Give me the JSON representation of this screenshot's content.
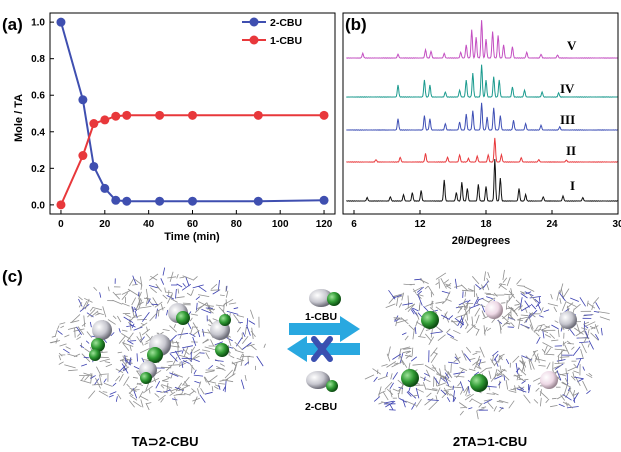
{
  "panels": {
    "a": "(a)",
    "b": "(b)",
    "c": "(c)"
  },
  "chart_data": [
    {
      "type": "line",
      "xlabel": "Time (min)",
      "ylabel": "Mole / TA",
      "xlim": [
        -5,
        125
      ],
      "ylim": [
        -0.05,
        1.05
      ],
      "xticks": [
        0,
        20,
        40,
        60,
        80,
        100,
        120
      ],
      "yticks": [
        0.0,
        0.2,
        0.4,
        0.6,
        0.8,
        1.0
      ],
      "legend_position": "top-right",
      "series": [
        {
          "name": "2-CBU",
          "color": "#3f4fb0",
          "x": [
            0,
            10,
            15,
            20,
            25,
            30,
            45,
            60,
            90,
            120
          ],
          "y": [
            1.0,
            0.575,
            0.21,
            0.09,
            0.025,
            0.02,
            0.02,
            0.02,
            0.02,
            0.025
          ]
        },
        {
          "name": "1-CBU",
          "color": "#e8383b",
          "x": [
            0,
            10,
            15,
            20,
            25,
            30,
            45,
            60,
            90,
            120
          ],
          "y": [
            0.0,
            0.27,
            0.445,
            0.465,
            0.485,
            0.49,
            0.49,
            0.49,
            0.49,
            0.49
          ]
        }
      ]
    },
    {
      "type": "line",
      "xlabel": "2θ/Degrees",
      "xlim": [
        5,
        30
      ],
      "xticks": [
        6,
        12,
        18,
        24,
        30
      ],
      "traces": [
        {
          "label": "V",
          "color": "#c34fc1"
        },
        {
          "label": "IV",
          "color": "#1a9a8e"
        },
        {
          "label": "III",
          "color": "#3e4fb5"
        },
        {
          "label": "II",
          "color": "#e8383b"
        },
        {
          "label": "I",
          "color": "#111111"
        }
      ]
    }
  ],
  "scheme": {
    "forward_label": "1-CBU",
    "backward_label": "2-CBU",
    "left_caption": "TA⊃2-CBU",
    "right_caption": "2TA⊃1-CBU",
    "arrow_color": "#29a8e0",
    "cross_color": "#3a4fb0"
  }
}
